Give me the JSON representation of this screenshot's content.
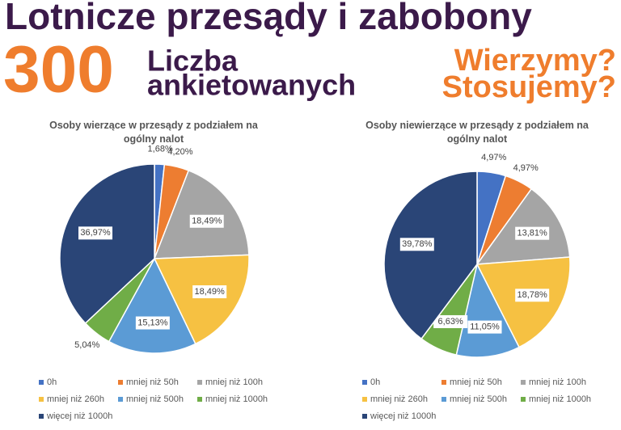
{
  "header": {
    "title": "Lotnicze przesądy i zabobony",
    "count": "300",
    "count_label": [
      "Liczba",
      "ankietowanych"
    ],
    "questions": [
      "Wierzymy?",
      "Stosujemy?"
    ]
  },
  "chart_data": [
    {
      "type": "pie",
      "title": "Osoby  wierzące w przesądy z podziałem na ogólny nalot",
      "categories": [
        "0h",
        "mniej niż 50h",
        "mniej niż 100h",
        "mniej niż 260h",
        "mniej niż 500h",
        "mniej niż 1000h",
        "więcej niż 1000h"
      ],
      "values": [
        1.68,
        4.2,
        18.49,
        18.49,
        15.13,
        5.04,
        36.97
      ],
      "value_labels": [
        "1,68%",
        "4,20%",
        "18,49%",
        "18,49%",
        "15,13%",
        "5,04%",
        "36,97%"
      ],
      "colors": [
        "#4472c4",
        "#ed7d31",
        "#a5a5a5",
        "#f6c142",
        "#5b9bd5",
        "#70ad47",
        "#2a4577"
      ]
    },
    {
      "type": "pie",
      "title": "Osoby niewierzące w przesądy z podziałem na ogólny nalot",
      "categories": [
        "0h",
        "mniej niż 50h",
        "mniej niż 100h",
        "mniej niż 260h",
        "mniej niż 500h",
        "mniej niż 1000h",
        "więcej niż 1000h"
      ],
      "values": [
        4.97,
        4.97,
        13.81,
        18.78,
        11.05,
        6.63,
        39.78
      ],
      "value_labels": [
        "4,97%",
        "4,97%",
        "13,81%",
        "18,78%",
        "11,05%",
        "6,63%",
        "39,78%"
      ],
      "colors": [
        "#4472c4",
        "#ed7d31",
        "#a5a5a5",
        "#f6c142",
        "#5b9bd5",
        "#70ad47",
        "#2a4577"
      ]
    }
  ]
}
